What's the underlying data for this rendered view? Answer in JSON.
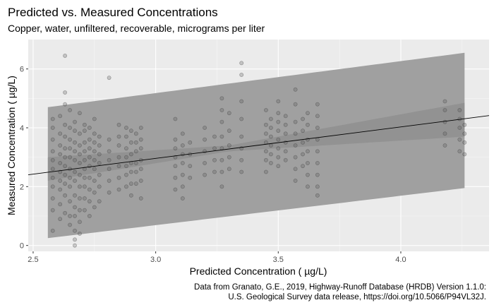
{
  "chart_data": {
    "type": "scatter",
    "title": "Predicted vs. Measured Concentrations",
    "subtitle": "Copper, water, unfiltered, recoverable, micrograms per liter",
    "xlabel": "Predicted Concentration ( µg/L)",
    "ylabel": "Measured Concentration ( µg/L)",
    "caption": [
      "Data from Granato, G.E., 2019, Highway-Runoff Database (HRDB) Version 1.1.0:",
      "U.S. Geological Survey data release, https://doi.org/10.5066/P94VL32J."
    ],
    "xlim": [
      2.48,
      4.36
    ],
    "ylim": [
      -0.2,
      7.0
    ],
    "x_ticks": [
      2.5,
      3.0,
      3.5,
      4.0
    ],
    "x_tick_labels": [
      "2.5",
      "3.0",
      "3.5",
      "4.0"
    ],
    "y_ticks": [
      0,
      2,
      4,
      6
    ],
    "y_tick_labels": [
      "0",
      "2",
      "4",
      "6"
    ],
    "grid": true,
    "fit_line": {
      "intercept": -0.25,
      "slope": 1.07
    },
    "confidence_band": [
      {
        "x": 2.56,
        "lower": 2.2,
        "upper": 3.0
      },
      {
        "x": 3.3,
        "lower": 3.2,
        "upper": 3.4
      },
      {
        "x": 4.26,
        "lower": 3.7,
        "upper": 4.85
      }
    ],
    "prediction_band": [
      {
        "x": 2.56,
        "lower": 0.25,
        "upper": 4.7
      },
      {
        "x": 4.26,
        "lower": 1.95,
        "upper": 6.55
      }
    ],
    "point_columns": [
      {
        "x": 2.58,
        "y": [
          0.5,
          1.2,
          1.6,
          2.0,
          2.3,
          2.6,
          2.9,
          3.2,
          3.6,
          4.0,
          4.3
        ]
      },
      {
        "x": 2.61,
        "y": [
          0.9,
          1.4,
          1.9,
          2.2,
          2.5,
          2.8,
          3.1,
          3.4,
          3.8,
          4.4
        ]
      },
      {
        "x": 2.63,
        "y": [
          1.1,
          1.7,
          2.1,
          2.4,
          2.7,
          3.0,
          3.3,
          3.7,
          4.1,
          4.8,
          5.2,
          6.45
        ]
      },
      {
        "x": 2.65,
        "y": [
          0.7,
          1.0,
          1.5,
          2.0,
          2.3,
          2.6,
          3.0,
          3.3,
          3.6,
          4.0,
          4.6
        ]
      },
      {
        "x": 2.67,
        "y": [
          0.0,
          0.2,
          0.5,
          1.0,
          1.3,
          1.7,
          2.2,
          2.5,
          2.9,
          3.2,
          3.5,
          3.9,
          4.2
        ]
      },
      {
        "x": 2.69,
        "y": [
          0.4,
          0.8,
          1.2,
          1.6,
          2.0,
          2.4,
          2.8,
          3.1,
          3.4,
          3.8,
          4.5
        ]
      },
      {
        "x": 2.71,
        "y": [
          1.2,
          1.6,
          2.0,
          2.3,
          2.6,
          2.9,
          3.2,
          3.5,
          3.9,
          4.1
        ]
      },
      {
        "x": 2.73,
        "y": [
          1.0,
          1.5,
          1.9,
          2.3,
          2.7,
          3.0,
          3.3,
          3.6,
          4.0
        ]
      },
      {
        "x": 2.75,
        "y": [
          1.3,
          1.8,
          2.2,
          2.6,
          2.9,
          3.2,
          3.5,
          3.8,
          4.3
        ]
      },
      {
        "x": 2.77,
        "y": [
          1.5,
          2.0,
          2.4,
          2.8,
          3.1,
          3.4,
          3.7
        ]
      },
      {
        "x": 2.81,
        "y": [
          1.8,
          2.2,
          2.6,
          2.9,
          3.2,
          3.6,
          5.7
        ]
      },
      {
        "x": 2.85,
        "y": [
          1.9,
          2.3,
          2.7,
          3.0,
          3.4,
          3.7,
          4.1
        ]
      },
      {
        "x": 2.88,
        "y": [
          2.0,
          2.4,
          2.7,
          3.0,
          3.3,
          3.7,
          4.0
        ]
      },
      {
        "x": 2.9,
        "y": [
          1.7,
          2.1,
          2.5,
          2.8,
          3.1,
          3.5,
          3.9
        ]
      },
      {
        "x": 2.92,
        "y": [
          2.1,
          2.5,
          2.8,
          3.2,
          3.5,
          3.8
        ]
      },
      {
        "x": 2.94,
        "y": [
          1.6,
          2.2,
          2.6,
          2.9,
          3.3,
          3.6,
          4.0
        ]
      },
      {
        "x": 3.08,
        "y": [
          1.9,
          2.3,
          2.7,
          3.0,
          3.3,
          3.6,
          4.3
        ]
      },
      {
        "x": 3.11,
        "y": [
          1.6,
          2.0,
          2.4,
          2.8,
          3.1,
          3.4,
          3.8
        ]
      },
      {
        "x": 3.14,
        "y": [
          2.3,
          2.7,
          3.1,
          3.5
        ]
      },
      {
        "x": 3.2,
        "y": [
          2.4,
          2.8,
          3.2,
          3.6,
          4.0
        ]
      },
      {
        "x": 3.24,
        "y": [
          2.5,
          2.9,
          3.3,
          3.7
        ]
      },
      {
        "x": 3.27,
        "y": [
          2.0,
          2.5,
          2.9,
          3.3,
          3.7,
          4.2,
          4.6,
          5.0
        ]
      },
      {
        "x": 3.3,
        "y": [
          2.6,
          3.0,
          3.4,
          3.9,
          4.5
        ]
      },
      {
        "x": 3.35,
        "y": [
          2.5,
          2.9,
          3.3,
          3.7,
          4.3,
          4.9,
          5.8,
          6.2
        ]
      },
      {
        "x": 3.45,
        "y": [
          2.5,
          2.9,
          3.2,
          3.5,
          3.8,
          4.1,
          4.6
        ]
      },
      {
        "x": 3.47,
        "y": [
          2.8,
          3.1,
          3.4,
          3.7,
          4.0,
          4.3
        ]
      },
      {
        "x": 3.5,
        "y": [
          2.7,
          3.0,
          3.3,
          3.6,
          3.9,
          4.2,
          4.5,
          4.9
        ]
      },
      {
        "x": 3.53,
        "y": [
          2.9,
          3.2,
          3.5,
          3.8,
          4.1,
          4.4
        ]
      },
      {
        "x": 3.57,
        "y": [
          2.2,
          2.6,
          3.0,
          3.4,
          3.8,
          4.2,
          4.8,
          5.3
        ]
      },
      {
        "x": 3.6,
        "y": [
          2.7,
          3.1,
          3.5,
          3.9,
          4.3
        ]
      },
      {
        "x": 3.62,
        "y": [
          2.0,
          2.4,
          2.8,
          3.2,
          3.6,
          4.1,
          4.5
        ]
      },
      {
        "x": 3.66,
        "y": [
          1.7,
          2.0,
          2.4,
          2.8,
          3.2,
          3.6,
          4.0,
          4.4,
          4.8
        ]
      },
      {
        "x": 4.18,
        "y": [
          3.4,
          3.8,
          4.2,
          4.6,
          4.9
        ]
      },
      {
        "x": 4.24,
        "y": [
          3.2,
          3.6,
          4.0,
          4.3,
          4.6
        ]
      },
      {
        "x": 4.26,
        "y": [
          3.1,
          3.5,
          3.8,
          4.1
        ]
      }
    ]
  }
}
